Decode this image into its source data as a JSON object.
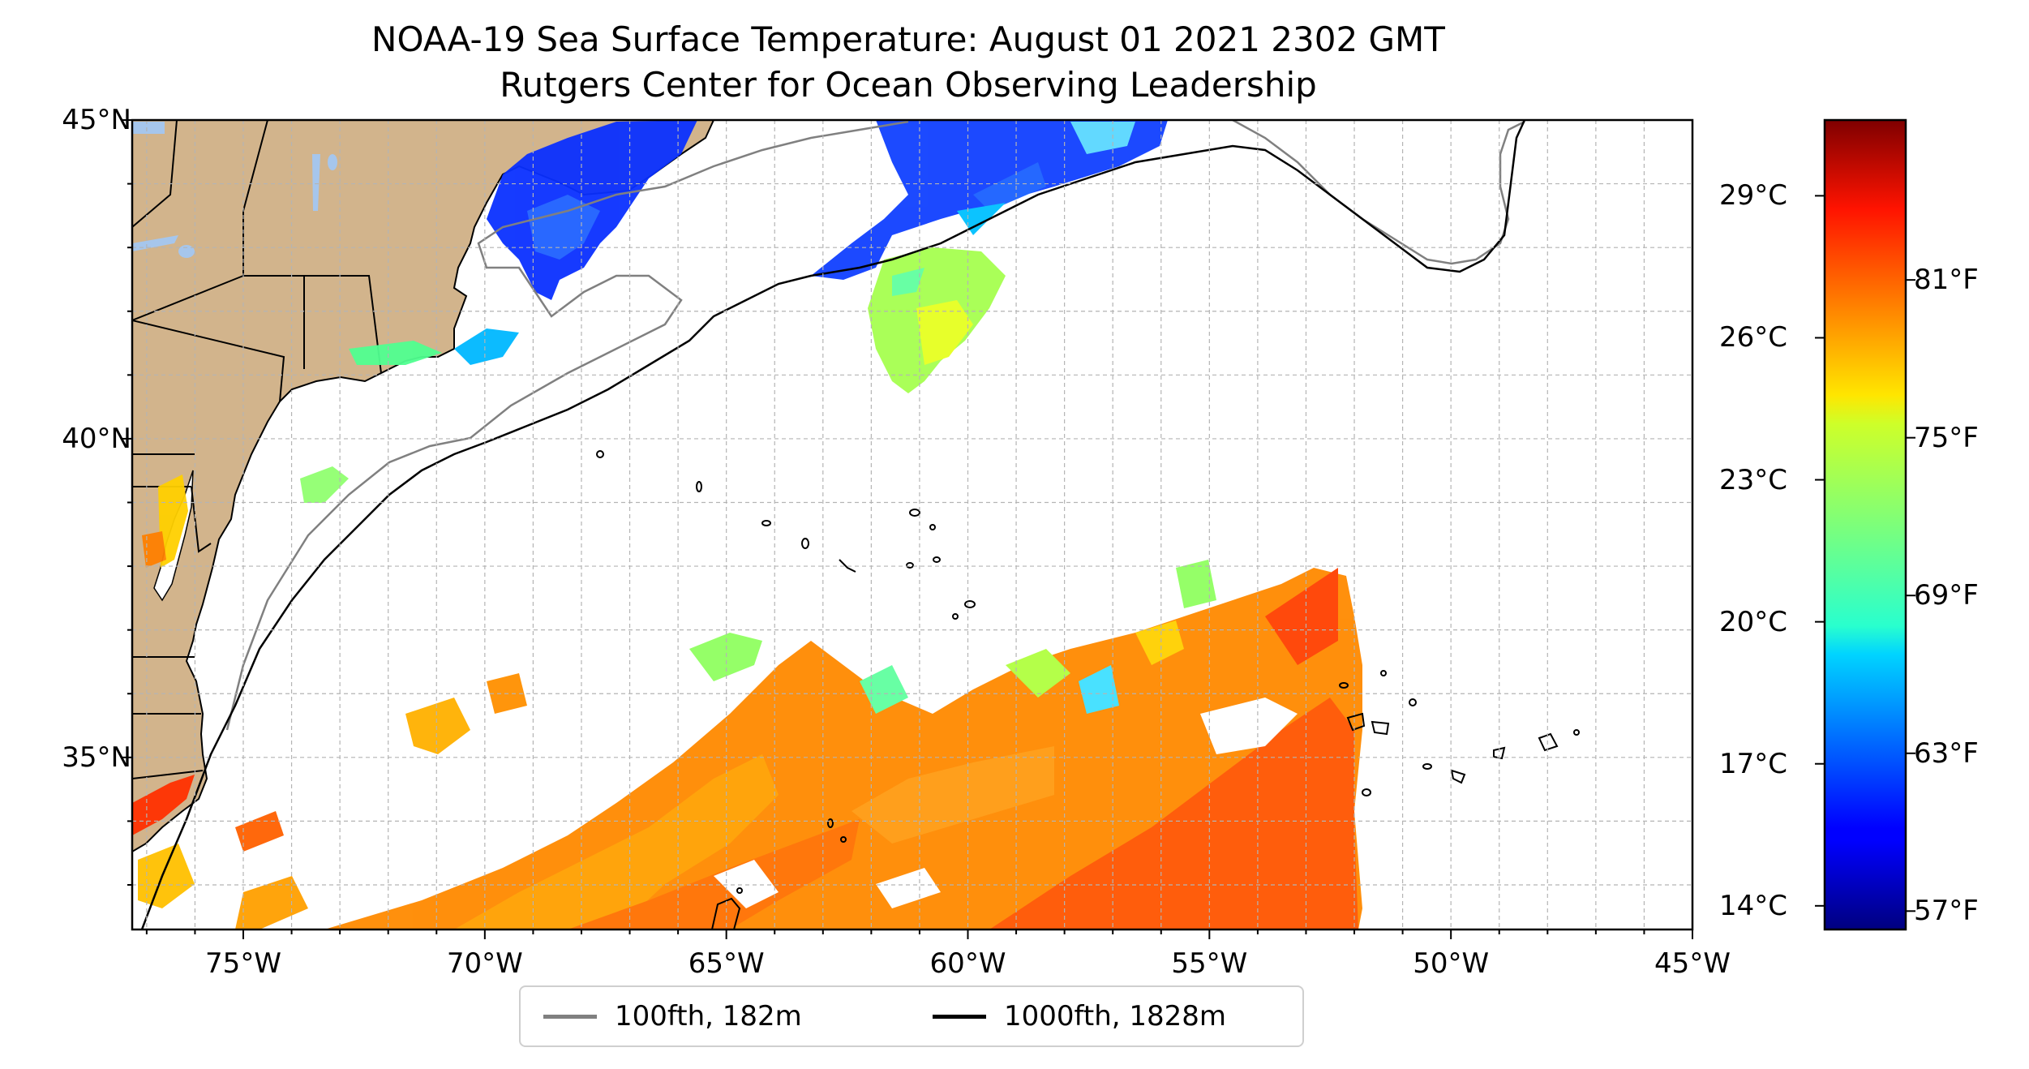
{
  "title": {
    "line1": "NOAA-19 Sea Surface Temperature: August 01 2021 2302 GMT",
    "line2": "Rutgers Center for Ocean Observing Leadership"
  },
  "axes": {
    "lat_labels": [
      "45°N",
      "40°N",
      "35°N"
    ],
    "lat_values": [
      45,
      40,
      35
    ],
    "lon_labels": [
      "75°W",
      "70°W",
      "65°W",
      "60°W",
      "55°W",
      "50°W",
      "45°W"
    ],
    "lon_values": [
      -75,
      -70,
      -65,
      -60,
      -55,
      -50,
      -45
    ],
    "lat_range": [
      32.3,
      45
    ],
    "lon_range": [
      -77.3,
      -45
    ],
    "gridlines": true
  },
  "colorbar": {
    "celsius_labels": [
      "29°C",
      "26°C",
      "23°C",
      "20°C",
      "17°C",
      "14°C"
    ],
    "celsius_values": [
      29,
      26,
      23,
      20,
      17,
      14
    ],
    "fahrenheit_labels": [
      "81°F",
      "75°F",
      "69°F",
      "63°F",
      "57°F"
    ],
    "fahrenheit_values": [
      81,
      75,
      69,
      63,
      57
    ],
    "range_c": [
      13.5,
      30.6
    ],
    "colormap": "jet"
  },
  "legend": {
    "items": [
      {
        "label": "100fth, 182m",
        "color": "#808080"
      },
      {
        "label": "1000fth, 1828m",
        "color": "#000000"
      }
    ]
  },
  "colors": {
    "land": "#d2b48c",
    "lakes": "#a6c6ec",
    "grid": "#b0b0b0"
  }
}
